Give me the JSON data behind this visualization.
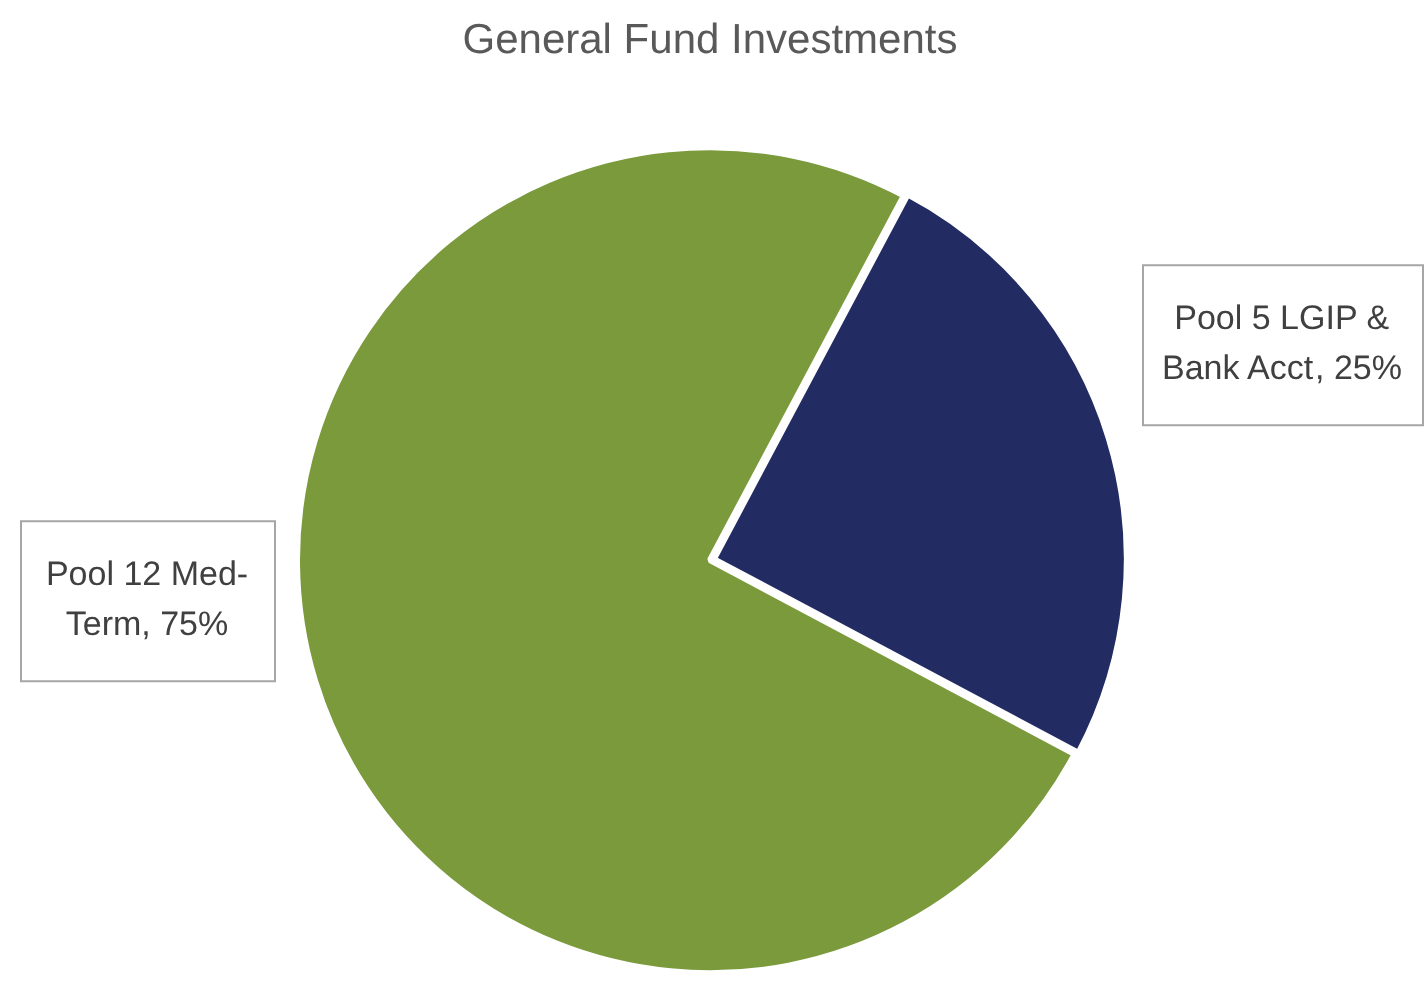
{
  "chart_data": {
    "type": "pie",
    "title": "General Fund Investments",
    "categories": [
      "Pool 5 LGIP & Bank Acct",
      "Pool 12 Med-Term"
    ],
    "values": [
      25,
      75
    ],
    "colors": [
      "#222c62",
      "#7a9a3c"
    ],
    "value_labels": [
      ", 25%",
      ", 75%"
    ],
    "legend": false
  }
}
